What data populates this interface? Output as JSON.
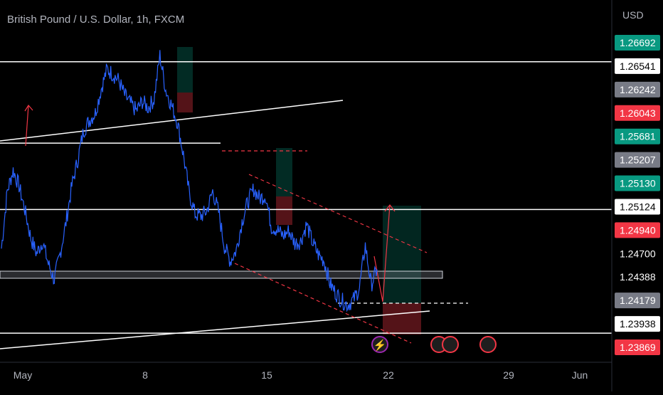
{
  "chart_data": {
    "type": "line",
    "title": "British Pound / U.S. Dollar, 1h, FXCM",
    "currency": "USD",
    "x_tick_labels": [
      "May",
      "8",
      "15",
      "22",
      "29",
      "Jun"
    ],
    "ylim": [
      1.2372,
      1.2686
    ],
    "series": [
      {
        "values": [
          1.2475,
          1.253,
          1.255,
          1.2535,
          1.2512,
          1.2485,
          1.247,
          1.2482,
          1.246,
          1.2445,
          1.247,
          1.25,
          1.2535,
          1.256,
          1.2588,
          1.2598,
          1.2605,
          1.2628,
          1.2647,
          1.2642,
          1.2636,
          1.2622,
          1.2614,
          1.2607,
          1.2616,
          1.261,
          1.2618,
          1.266,
          1.2627,
          1.2612,
          1.2596,
          1.2565,
          1.2528,
          1.2508,
          1.2506,
          1.2511,
          1.253,
          1.251,
          1.2477,
          1.2463,
          1.2473,
          1.2501,
          1.252,
          1.2532,
          1.2523,
          1.2526,
          1.2496,
          1.2493,
          1.2487,
          1.2492,
          1.248,
          1.2482,
          1.2498,
          1.2481,
          1.2469,
          1.2463,
          1.2441,
          1.2432,
          1.2425,
          1.2421,
          1.2426,
          1.2437,
          1.2478,
          1.244,
          1.2455
        ]
      }
    ],
    "horizontal_lines": [
      1.26541,
      1.25124,
      1.23938,
      1.2576
    ],
    "price_labels": [
      {
        "value": "1.26692",
        "color": "#089981"
      },
      {
        "value": "1.26541",
        "color": "#ffffff"
      },
      {
        "value": "1.26242",
        "color": "#787b86"
      },
      {
        "value": "1.26043",
        "color": "#f23645"
      },
      {
        "value": "1.25681",
        "color": "#089981"
      },
      {
        "value": "1.25207",
        "color": "#787b86"
      },
      {
        "value": "1.25130",
        "color": "#089981"
      },
      {
        "value": "1.25124",
        "color": "#ffffff"
      },
      {
        "value": "1.24940",
        "color": "#f23645"
      },
      {
        "value": "1.24700",
        "color": "none"
      },
      {
        "value": "1.24388",
        "color": "none"
      },
      {
        "value": "1.24179",
        "color": "#787b86"
      },
      {
        "value": "1.23938",
        "color": "#ffffff"
      },
      {
        "value": "1.23869",
        "color": "#f23645"
      }
    ],
    "colors": {
      "series": "#2962ff",
      "up": "#089981",
      "down": "#f23645",
      "background": "#000000",
      "text": "#b2b5be"
    },
    "grid": false,
    "legend": "none"
  }
}
